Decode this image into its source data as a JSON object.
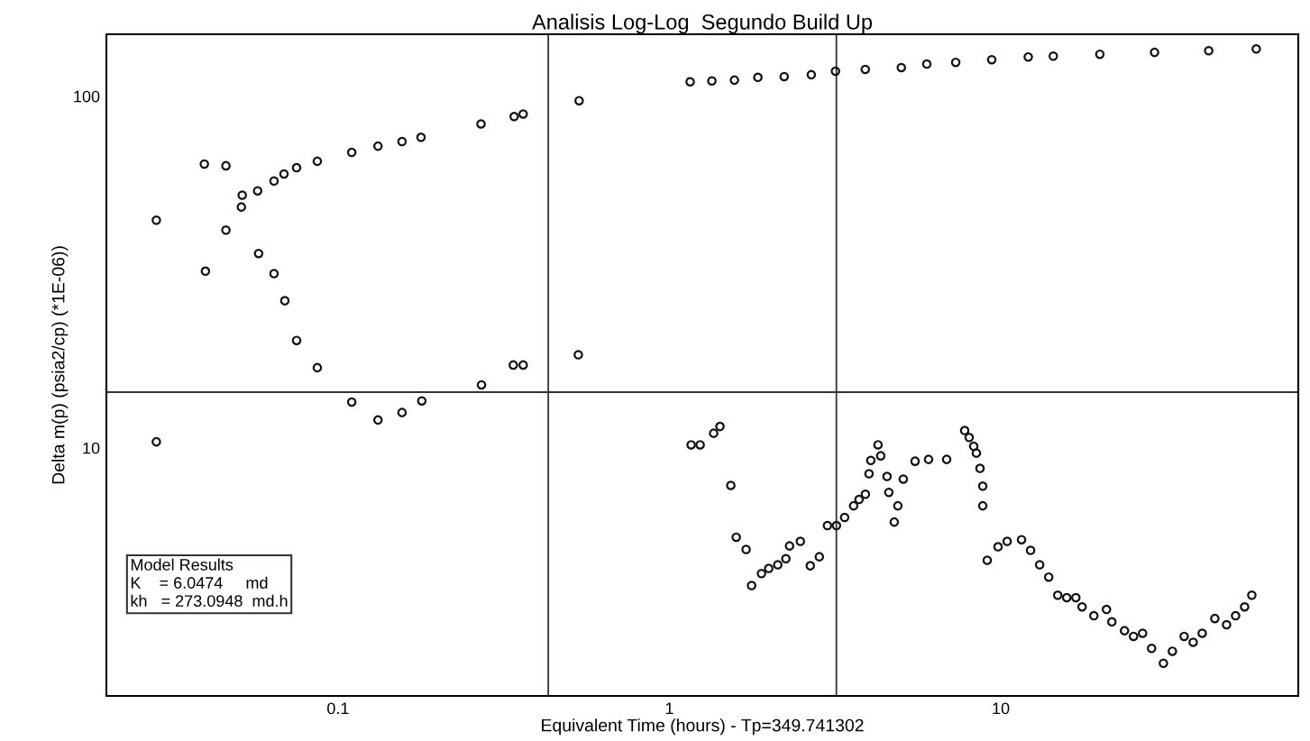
{
  "chart_data": {
    "type": "scatter",
    "title": "Analisis Log-Log  Segundo Build Up",
    "xlabel": "Equivalent Time (hours) - Tp=349.741302",
    "ylabel": "Delta m(p) (psia2/cp) (*1E-06))",
    "log": "xy",
    "marker": "circle",
    "grid": false,
    "xlim": [
      0.02,
      79
    ],
    "ylim": [
      1.97,
      150
    ],
    "xticks": [
      0.1,
      1,
      10
    ],
    "yticks": [
      10,
      100
    ],
    "ref_lines": [
      {
        "axis": "x",
        "value": 0.431,
        "color": "#333333"
      },
      {
        "axis": "x",
        "value": 3.19,
        "color": "#333333"
      },
      {
        "axis": "y",
        "value": 14.4,
        "color": "#333333"
      }
    ],
    "annotations": [
      "Model Results",
      "K    = 6.0474     md",
      "kh   = 273.0948  md.h"
    ],
    "series": [
      {
        "color": "#111111",
        "x": [
          0.0283,
          0.0398,
          0.0459,
          0.0511,
          0.0514,
          0.0572,
          0.0641,
          0.0687,
          0.075,
          0.0866,
          0.11,
          0.132,
          0.156,
          0.178,
          0.27,
          0.34,
          0.362,
          0.534,
          1.155,
          1.343,
          1.571,
          1.849,
          2.22,
          2.68,
          3.17,
          3.9,
          5.01,
          5.98,
          7.31,
          9.39,
          12.1,
          14.4,
          19.9,
          29.1,
          42.4,
          59.0
        ],
        "values": [
          10.4,
          31.8,
          41.6,
          48.4,
          52.3,
          53.8,
          57.4,
          60.1,
          62.6,
          65.3,
          69.2,
          72.1,
          74.3,
          76.4,
          83.4,
          87.5,
          89.0,
          97.1,
          109.9,
          110.5,
          111.1,
          113.1,
          113.7,
          115.1,
          117.8,
          119.2,
          120.6,
          123.4,
          124.8,
          127.0,
          129.3,
          130.0,
          131.6,
          133.2,
          134.7,
          136.3
        ]
      },
      {
        "color": "#111111",
        "x": [
          0.0283,
          0.0395,
          0.0459,
          0.0576,
          0.0641,
          0.0691,
          0.075,
          0.0866,
          0.11,
          0.132,
          0.156,
          0.179,
          0.271,
          0.338,
          0.362,
          0.531,
          1.163,
          1.238,
          1.36,
          1.421,
          1.532,
          1.591,
          1.704,
          1.77,
          1.896,
          1.994,
          2.123,
          2.246,
          2.304,
          2.484,
          2.661,
          2.834,
          2.998,
          3.192,
          3.378,
          3.596,
          3.734,
          3.903,
          4.002,
          4.052,
          4.26,
          4.341,
          4.536,
          4.593,
          4.769,
          4.89,
          5.078,
          5.511,
          6.053,
          6.864,
          7.78,
          8.027,
          8.284,
          8.44,
          8.655,
          8.821,
          8.821,
          9.1,
          9.81,
          10.45,
          11.55,
          12.3,
          13.1,
          13.95,
          14.85,
          15.81,
          16.84,
          17.59,
          19.09,
          20.84,
          21.63,
          23.62,
          25.15,
          26.78,
          28.51,
          30.95,
          32.94,
          35.74,
          38.06,
          40.52,
          44.24,
          48.0,
          51.1,
          54.4,
          57.2
        ],
        "values": [
          44.4,
          64.1,
          63.4,
          35.7,
          31.3,
          26.2,
          20.2,
          16.9,
          13.5,
          12.0,
          12.6,
          13.6,
          15.1,
          17.2,
          17.2,
          18.4,
          10.2,
          10.2,
          11.0,
          11.5,
          7.82,
          5.57,
          5.14,
          4.06,
          4.39,
          4.54,
          4.65,
          4.84,
          5.26,
          5.42,
          4.62,
          4.9,
          6.01,
          6.01,
          6.34,
          6.84,
          7.13,
          7.38,
          8.44,
          9.21,
          10.2,
          9.49,
          8.29,
          7.47,
          6.15,
          6.84,
          8.15,
          9.16,
          9.27,
          9.27,
          11.2,
          10.7,
          10.1,
          9.66,
          8.74,
          7.78,
          6.84,
          4.79,
          5.23,
          5.42,
          5.48,
          5.11,
          4.65,
          4.29,
          3.81,
          3.75,
          3.75,
          3.53,
          3.33,
          3.47,
          3.2,
          3.02,
          2.91,
          2.97,
          2.69,
          2.44,
          2.64,
          2.91,
          2.8,
          2.97,
          3.27,
          3.14,
          3.33,
          3.53,
          3.81
        ]
      }
    ]
  }
}
